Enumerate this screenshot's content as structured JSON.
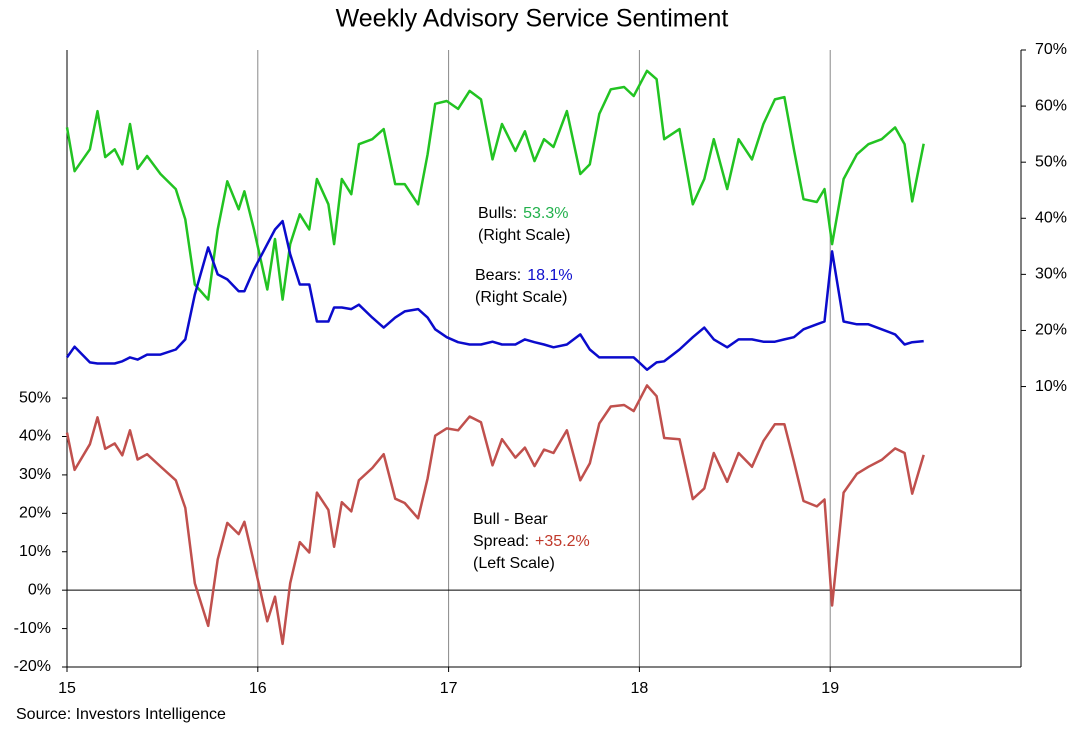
{
  "chart_data": {
    "type": "line",
    "title": "Weekly Advisory Service Sentiment",
    "source": "Source: Investors Intelligence",
    "x": [
      15.0,
      15.04,
      15.12,
      15.16,
      15.2,
      15.25,
      15.29,
      15.33,
      15.37,
      15.42,
      15.49,
      15.57,
      15.62,
      15.67,
      15.74,
      15.79,
      15.84,
      15.9,
      15.93,
      15.98,
      16.05,
      16.09,
      16.13,
      16.17,
      16.22,
      16.27,
      16.31,
      16.37,
      16.4,
      16.44,
      16.49,
      16.53,
      16.6,
      16.66,
      16.72,
      16.77,
      16.84,
      16.89,
      16.93,
      16.99,
      17.05,
      17.11,
      17.17,
      17.23,
      17.28,
      17.35,
      17.4,
      17.45,
      17.5,
      17.55,
      17.62,
      17.69,
      17.74,
      17.79,
      17.85,
      17.92,
      17.97,
      18.04,
      18.09,
      18.13,
      18.21,
      18.28,
      18.34,
      18.39,
      18.46,
      18.52,
      18.59,
      18.65,
      18.71,
      18.76,
      18.81,
      18.86,
      18.93,
      18.97,
      19.01,
      19.07,
      19.14,
      19.2,
      19.27,
      19.34,
      19.39,
      19.43,
      19.49
    ],
    "series": [
      {
        "color": "#22c322",
        "axis": "y2",
        "values": [
          56.2,
          48.4,
          52.3,
          59.1,
          50.9,
          52.3,
          49.6,
          56.8,
          48.8,
          51.1,
          47.9,
          45.2,
          39.8,
          28.2,
          25.5,
          38.0,
          46.6,
          41.6,
          44.8,
          38.0,
          27.3,
          36.3,
          25.5,
          35.4,
          40.7,
          38.0,
          47.0,
          42.5,
          35.4,
          47.0,
          44.3,
          53.2,
          54.1,
          55.9,
          46.1,
          46.1,
          42.5,
          51.4,
          60.4,
          60.9,
          59.5,
          62.7,
          61.2,
          50.5,
          56.8,
          52.0,
          55.5,
          50.2,
          54.1,
          52.7,
          59.1,
          47.9,
          49.6,
          58.6,
          63.0,
          63.4,
          61.8,
          66.3,
          64.8,
          54.1,
          55.9,
          42.5,
          47.0,
          54.1,
          45.2,
          54.1,
          50.5,
          56.8,
          61.2,
          61.6,
          52.3,
          43.4,
          42.9,
          45.2,
          35.4,
          47.0,
          51.4,
          53.2,
          54.1,
          56.2,
          53.2,
          43.0,
          53.3
        ]
      },
      {
        "color": "#0b0bcc",
        "axis": "y2",
        "values": [
          15.2,
          17.1,
          14.3,
          14.1,
          14.1,
          14.1,
          14.5,
          15.2,
          14.8,
          15.7,
          15.7,
          16.6,
          18.4,
          26.4,
          34.8,
          30.0,
          29.1,
          27.0,
          27.0,
          30.9,
          35.4,
          38.0,
          39.5,
          33.6,
          28.2,
          28.2,
          21.6,
          21.6,
          24.1,
          24.1,
          23.8,
          24.6,
          22.3,
          20.5,
          22.3,
          23.4,
          23.8,
          22.3,
          20.2,
          18.8,
          17.9,
          17.5,
          17.5,
          18.0,
          17.5,
          17.5,
          18.4,
          17.9,
          17.5,
          17.0,
          17.5,
          19.3,
          16.6,
          15.2,
          15.2,
          15.2,
          15.2,
          13.0,
          14.3,
          14.5,
          16.6,
          18.8,
          20.5,
          18.4,
          17.0,
          18.4,
          18.4,
          18.0,
          18.0,
          18.4,
          18.8,
          20.2,
          21.1,
          21.6,
          34.1,
          21.6,
          21.1,
          21.1,
          20.2,
          19.3,
          17.5,
          17.9,
          18.1
        ]
      },
      {
        "color": "#c0504d",
        "axis": "y",
        "values": [
          41.0,
          31.3,
          38.0,
          45.0,
          36.8,
          38.2,
          35.1,
          41.6,
          34.0,
          35.4,
          32.2,
          28.6,
          21.4,
          1.8,
          -9.3,
          8.0,
          17.5,
          14.6,
          17.8,
          7.1,
          -8.1,
          -1.7,
          -14.0,
          1.8,
          12.5,
          9.8,
          25.4,
          20.9,
          11.3,
          22.9,
          20.5,
          28.6,
          31.8,
          35.4,
          23.8,
          22.7,
          18.7,
          29.1,
          40.2,
          42.1,
          41.6,
          45.2,
          43.7,
          32.5,
          39.3,
          34.5,
          37.1,
          32.3,
          36.6,
          35.7,
          41.6,
          28.6,
          33.0,
          43.4,
          47.8,
          48.2,
          46.6,
          53.3,
          50.5,
          39.6,
          39.3,
          23.7,
          26.5,
          35.7,
          28.2,
          35.7,
          32.1,
          38.8,
          43.2,
          43.2,
          33.5,
          23.2,
          21.8,
          23.6,
          -4.0,
          25.4,
          30.3,
          32.1,
          33.9,
          36.9,
          35.7,
          25.1,
          35.2
        ]
      }
    ],
    "xlim": [
      15,
      20
    ],
    "xticks": [
      15,
      16,
      17,
      18,
      19
    ],
    "ylim": [
      -20,
      140.6
    ],
    "yticks": [
      {
        "value": -20,
        "label": "-20%"
      },
      {
        "value": -10,
        "label": "-10%"
      },
      {
        "value": 0,
        "label": "0%"
      },
      {
        "value": 10,
        "label": "10%"
      },
      {
        "value": 20,
        "label": "20%"
      },
      {
        "value": 30,
        "label": "30%"
      },
      {
        "value": 40,
        "label": "40%"
      },
      {
        "value": 50,
        "label": "50%"
      }
    ],
    "y2lim": [
      -40,
      70
    ],
    "y2ticks": [
      {
        "value": 10,
        "label": "10%"
      },
      {
        "value": 20,
        "label": "20%"
      },
      {
        "value": 30,
        "label": "30%"
      },
      {
        "value": 40,
        "label": "40%"
      },
      {
        "value": 50,
        "label": "50%"
      },
      {
        "value": 60,
        "label": "60%"
      },
      {
        "value": 70,
        "label": "70%"
      }
    ],
    "grid": true,
    "annotations": [
      {
        "label": "Bulls:",
        "value": "53.3%",
        "note": "(Right Scale)",
        "color": "#22b14c"
      },
      {
        "label": "Bears:",
        "value": "18.1%",
        "note": "(Right Scale)",
        "color": "#0b0bcc"
      },
      {
        "title": "Bull - Bear",
        "label": "Spread:",
        "value": "+35.2%",
        "note": "(Left Scale)",
        "color": "#c0392b"
      }
    ]
  }
}
